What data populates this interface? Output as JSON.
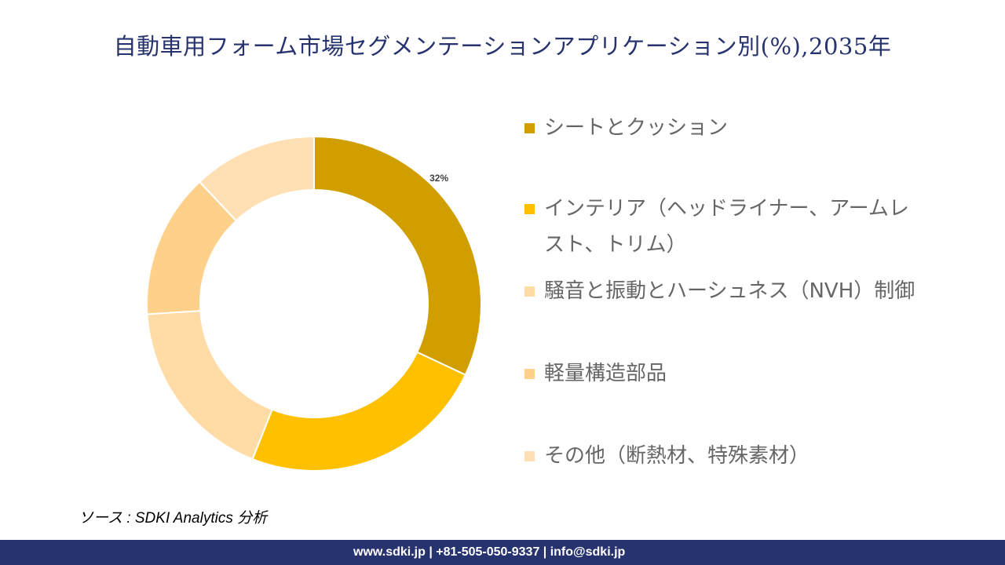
{
  "title": "自動車用フォーム市場セグメンテーションアプリケーション別(%),2035年",
  "chart_data": {
    "type": "pie",
    "variant": "donut",
    "title": "自動車用フォーム市場セグメンテーションアプリケーション別(%),2035年",
    "categories": [
      "シートとクッション",
      "インテリア（ヘッドライナー、アームレスト、トリム）",
      "騒音と振動とハーシュネス（NVH）制御",
      "軽量構造部品",
      "その他（断熱材、特殊素材）"
    ],
    "values": [
      32,
      24,
      18,
      14,
      12
    ],
    "colors": [
      "#D19E00",
      "#FFC000",
      "#FFDCA6",
      "#FFD08A",
      "#FFE0B5"
    ],
    "data_labels": [
      "32%",
      "",
      "",
      "",
      ""
    ],
    "legend_placement": "right"
  },
  "source": "ソース : SDKI Analytics 分析",
  "footer": "www.sdki.jp | +81-505-050-9337 | info@sdki.jp"
}
